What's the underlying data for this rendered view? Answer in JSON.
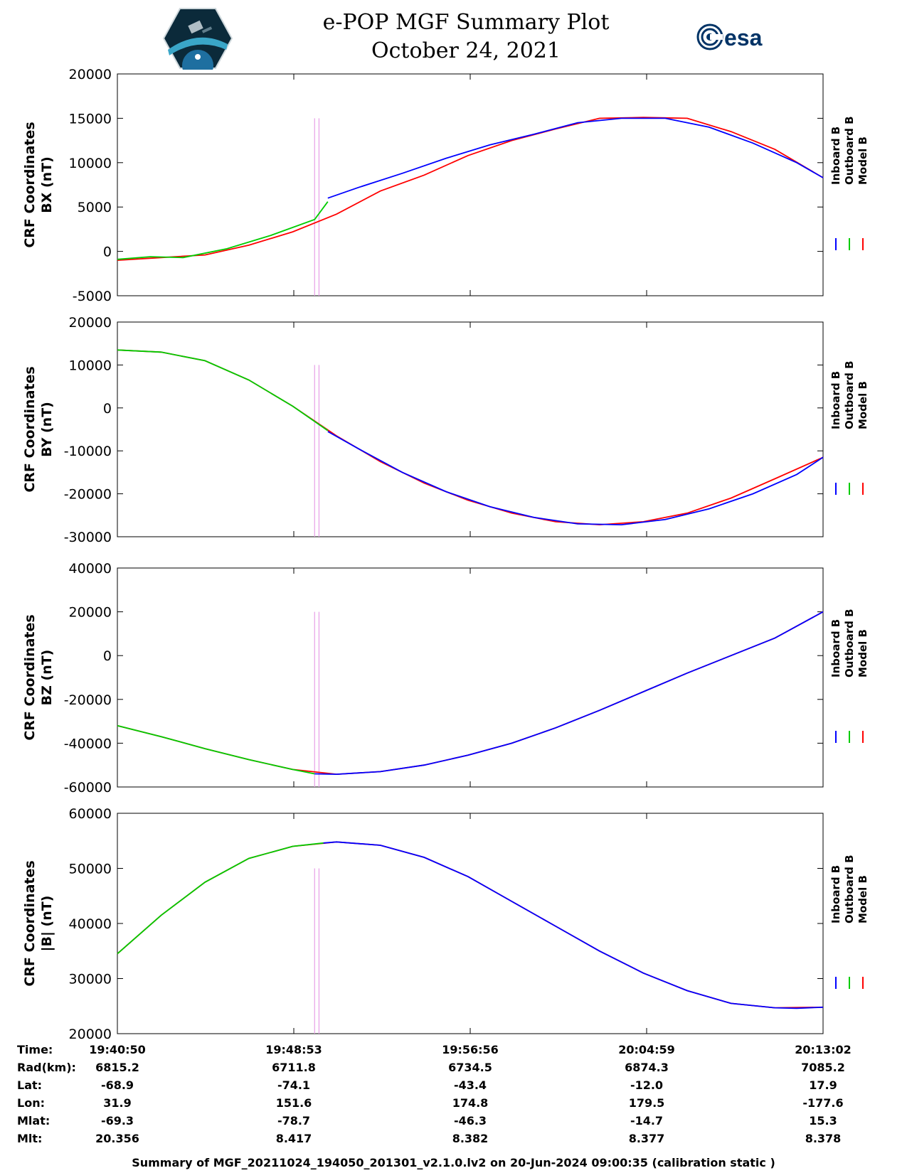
{
  "title": "e-POP MGF Summary Plot",
  "subtitle": "October 24, 2021",
  "logos": {
    "left": "e-POP CASSIOPE mission logo",
    "right": "esa"
  },
  "colors": {
    "inboard": "#0000ff",
    "outboard": "#00cc00",
    "model": "#ff0000",
    "marker": "#e8a0e8"
  },
  "time_ticks": [
    "19:40:50",
    "19:48:53",
    "19:56:56",
    "20:04:59",
    "20:13:02"
  ],
  "chart_data": [
    {
      "type": "line",
      "ylabel": [
        "CRF Coordinates",
        "BX (nT)"
      ],
      "ylim": [
        -5000,
        20000
      ],
      "yticks": [
        20000,
        15000,
        10000,
        5000,
        0,
        -5000
      ],
      "legend": [
        "Inboard B",
        "Outboard B",
        "Model B"
      ],
      "x_unit": "minutes since 19:40:50",
      "series": [
        {
          "name": "Inboard B",
          "x": [
            9.6,
            11,
            13,
            15,
            17,
            19,
            21,
            23,
            25,
            27,
            29,
            31,
            32.2
          ],
          "values": [
            6000,
            7200,
            8800,
            10500,
            12000,
            13200,
            14500,
            15000,
            15000,
            14000,
            12200,
            10000,
            8300
          ]
        },
        {
          "name": "Outboard B",
          "x": [
            0,
            1.5,
            3,
            5,
            7,
            9,
            9.6
          ],
          "values": [
            -900,
            -600,
            -700,
            300,
            1800,
            3600,
            5600
          ]
        },
        {
          "name": "Model B",
          "x": [
            0,
            2,
            4,
            6,
            8,
            10,
            12,
            14,
            16,
            18,
            20,
            22,
            24,
            26,
            28,
            30,
            32.2
          ],
          "values": [
            -1000,
            -700,
            -400,
            700,
            2200,
            4200,
            6800,
            8600,
            10800,
            12500,
            13800,
            15000,
            15100,
            15000,
            13500,
            11500,
            8300
          ]
        }
      ],
      "markers_x": [
        9.0,
        9.2
      ]
    },
    {
      "type": "line",
      "ylabel": [
        "CRF Coordinates",
        "BY (nT)"
      ],
      "ylim": [
        -30000,
        20000
      ],
      "yticks": [
        20000,
        10000,
        0,
        -10000,
        -20000,
        -30000
      ],
      "legend": [
        "Inboard B",
        "Outboard B",
        "Model B"
      ],
      "x_unit": "minutes since 19:40:50",
      "series": [
        {
          "name": "Inboard B",
          "x": [
            9.6,
            11,
            13,
            15,
            17,
            19,
            21,
            23,
            25,
            27,
            29,
            31,
            32.2
          ],
          "values": [
            -5500,
            -9500,
            -15000,
            -19500,
            -23000,
            -25500,
            -27000,
            -27200,
            -26000,
            -23500,
            -20000,
            -15500,
            -11500
          ]
        },
        {
          "name": "Outboard B",
          "x": [
            0,
            2,
            4,
            6,
            8,
            9.6
          ],
          "values": [
            13500,
            13000,
            11000,
            6500,
            400,
            -5300
          ]
        },
        {
          "name": "Model B",
          "x": [
            0,
            2,
            4,
            6,
            8,
            10,
            12,
            14,
            16,
            18,
            20,
            22,
            24,
            26,
            28,
            30,
            32.2
          ],
          "values": [
            13500,
            13000,
            11000,
            6500,
            400,
            -6500,
            -12500,
            -17500,
            -21500,
            -24500,
            -26500,
            -27200,
            -26500,
            -24500,
            -21000,
            -16500,
            -11500
          ]
        }
      ],
      "markers_x": [
        9.0,
        9.2
      ]
    },
    {
      "type": "line",
      "ylabel": [
        "CRF Coordinates",
        "BZ (nT)"
      ],
      "ylim": [
        -60000,
        40000
      ],
      "yticks": [
        40000,
        20000,
        0,
        -20000,
        -40000,
        -60000
      ],
      "legend": [
        "Inboard B",
        "Outboard B",
        "Model B"
      ],
      "x_unit": "minutes since 19:40:50",
      "series": [
        {
          "name": "Inboard B",
          "x": [
            9.0,
            10,
            12,
            14,
            16,
            18,
            20,
            22,
            24,
            26,
            28,
            30,
            32.2
          ],
          "values": [
            -54000,
            -54200,
            -53000,
            -50000,
            -45500,
            -40000,
            -33000,
            -25000,
            -16500,
            -8000,
            0,
            8000,
            20000
          ]
        },
        {
          "name": "Outboard B",
          "x": [
            0,
            2,
            4,
            6,
            8,
            9.0
          ],
          "values": [
            -32000,
            -37000,
            -42500,
            -47500,
            -52000,
            -54000
          ]
        },
        {
          "name": "Model B",
          "x": [
            0,
            2,
            4,
            6,
            8,
            10,
            12,
            14,
            16,
            18,
            20,
            22,
            24,
            26,
            28,
            30,
            32.2
          ],
          "values": [
            -32000,
            -37000,
            -42500,
            -47500,
            -52000,
            -54200,
            -53000,
            -50000,
            -45500,
            -40000,
            -33000,
            -25000,
            -16500,
            -8000,
            0,
            8000,
            20000
          ]
        }
      ],
      "markers_x": [
        9.0,
        9.2
      ]
    },
    {
      "type": "line",
      "ylabel": [
        "CRF Coordinates",
        "|B| (nT)"
      ],
      "ylim": [
        20000,
        60000
      ],
      "yticks": [
        60000,
        50000,
        40000,
        30000,
        20000
      ],
      "legend": [
        "Inboard B",
        "Outboard B",
        "Model B"
      ],
      "x_unit": "minutes since 19:40:50",
      "series": [
        {
          "name": "Inboard B",
          "x": [
            9.4,
            10,
            12,
            14,
            16,
            18,
            20,
            22,
            24,
            26,
            28,
            30,
            31,
            32.2
          ],
          "values": [
            54600,
            54800,
            54200,
            52000,
            48500,
            44000,
            39500,
            35000,
            31000,
            27800,
            25500,
            24700,
            24600,
            24800
          ]
        },
        {
          "name": "Outboard B",
          "x": [
            0,
            2,
            4,
            6,
            8,
            9.4
          ],
          "values": [
            34500,
            41500,
            47500,
            51800,
            54000,
            54600
          ]
        },
        {
          "name": "Model B",
          "x": [
            0,
            2,
            4,
            6,
            8,
            10,
            12,
            14,
            16,
            18,
            20,
            22,
            24,
            26,
            28,
            30,
            32.2
          ],
          "values": [
            34500,
            41500,
            47500,
            51800,
            54000,
            54800,
            54200,
            52000,
            48500,
            44000,
            39500,
            35000,
            31000,
            27800,
            25500,
            24700,
            24800
          ]
        }
      ],
      "markers_x": [
        9.0,
        9.2
      ]
    }
  ],
  "info_rows": [
    {
      "label": "Time:",
      "values": [
        "19:40:50",
        "19:48:53",
        "19:56:56",
        "20:04:59",
        "20:13:02"
      ]
    },
    {
      "label": "Rad(km):",
      "values": [
        "6815.2",
        "6711.8",
        "6734.5",
        "6874.3",
        "7085.2"
      ]
    },
    {
      "label": "Lat:",
      "values": [
        "-68.9",
        "-74.1",
        "-43.4",
        "-12.0",
        "17.9"
      ]
    },
    {
      "label": "Lon:",
      "values": [
        "31.9",
        "151.6",
        "174.8",
        "179.5",
        "-177.6"
      ]
    },
    {
      "label": "Mlat:",
      "values": [
        "-69.3",
        "-78.7",
        "-46.3",
        "-14.7",
        "15.3"
      ]
    },
    {
      "label": "Mlt:",
      "values": [
        "20.356",
        "8.417",
        "8.382",
        "8.377",
        "8.378"
      ]
    }
  ],
  "footer": "Summary of MGF_20211024_194050_201301_v2.1.0.lv2 on 20-Jun-2024 09:00:35 (calibration static )"
}
